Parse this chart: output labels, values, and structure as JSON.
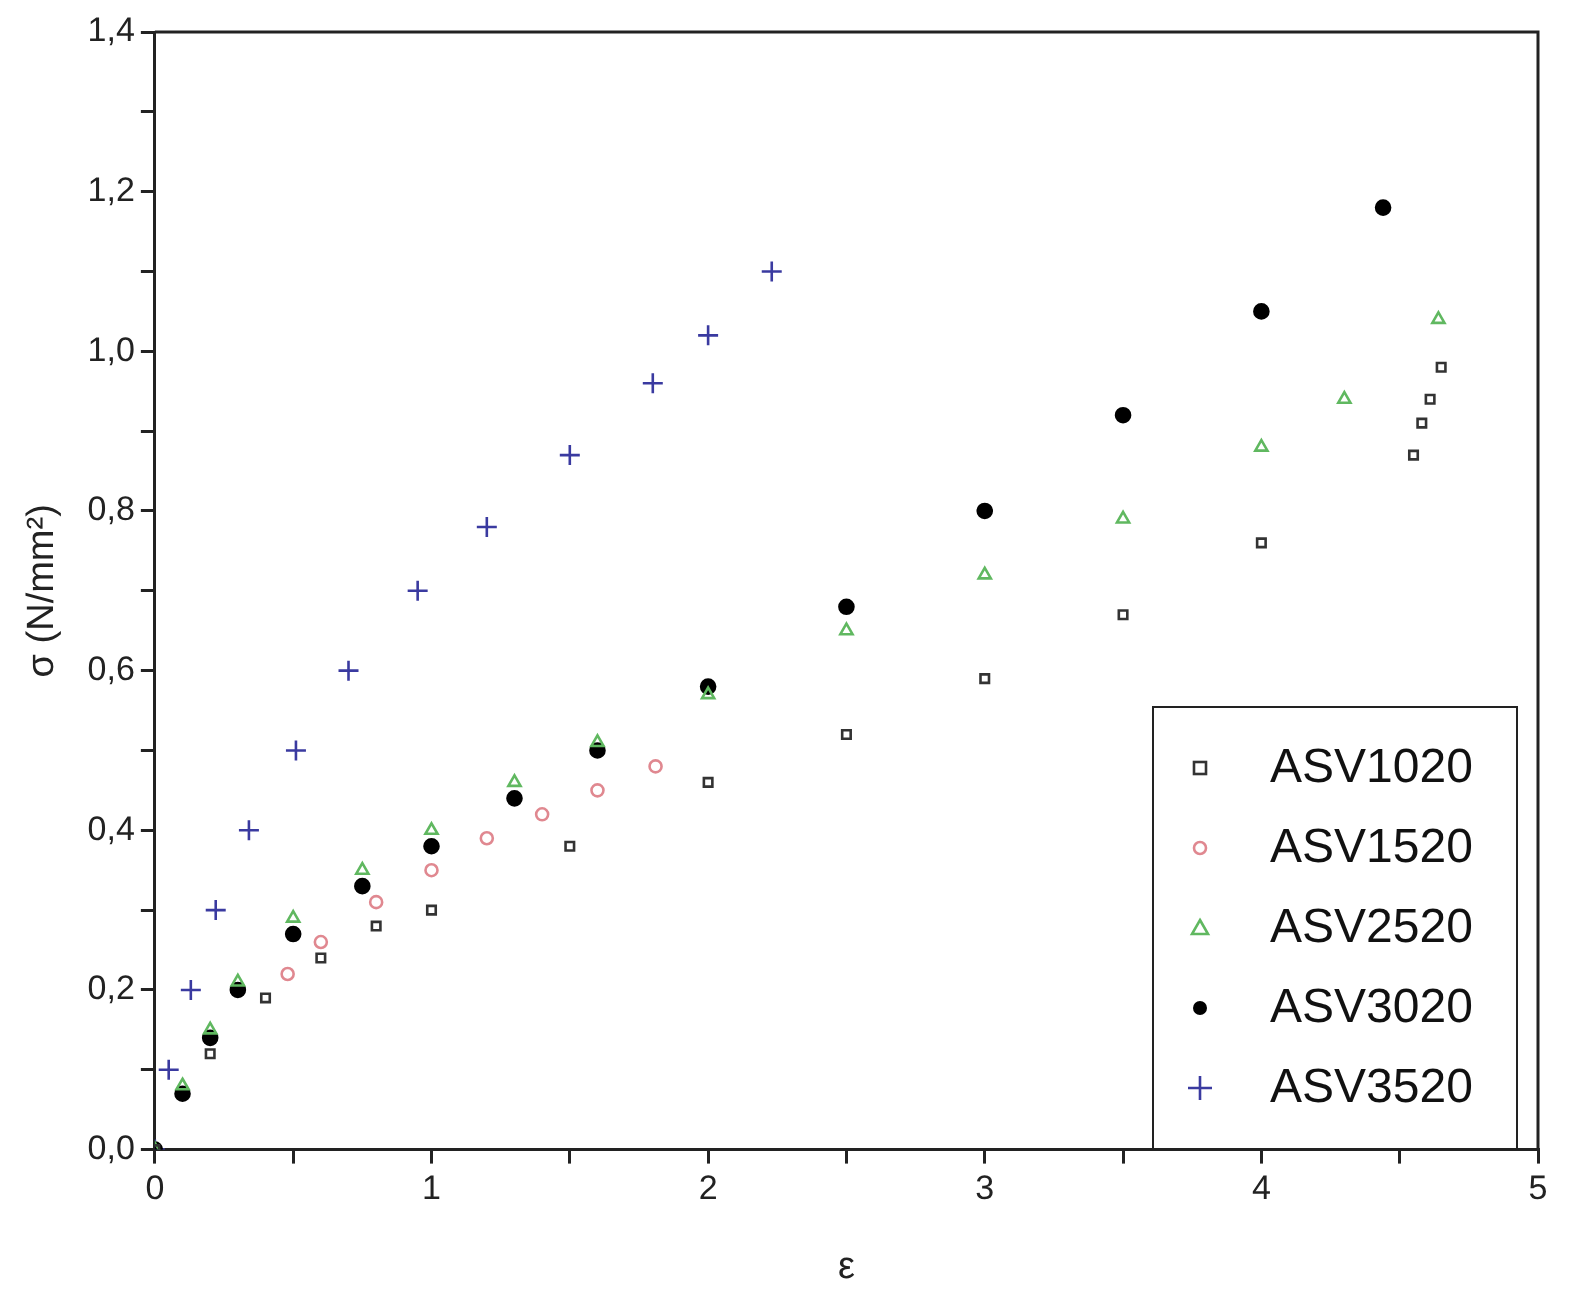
{
  "chart_data": {
    "type": "scatter",
    "xlabel": "ε",
    "ylabel": "σ (N/mm²)",
    "xlim": [
      0,
      5
    ],
    "ylim": [
      0,
      1.4
    ],
    "xticks": [
      0,
      {
        "value": 0.5,
        "label": null
      },
      1,
      {
        "value": 1.5,
        "label": null
      },
      2,
      {
        "value": 2.5,
        "label": null
      },
      3,
      {
        "value": 3.5,
        "label": null
      },
      4,
      {
        "value": 4.5,
        "label": null
      },
      5
    ],
    "yticks": [
      {
        "value": 0,
        "label": "0,0"
      },
      {
        "value": 0.1,
        "label": null
      },
      {
        "value": 0.2,
        "label": "0,2"
      },
      {
        "value": 0.3,
        "label": null
      },
      {
        "value": 0.4,
        "label": "0,4"
      },
      {
        "value": 0.5,
        "label": null
      },
      {
        "value": 0.6,
        "label": "0,6"
      },
      {
        "value": 0.7,
        "label": null
      },
      {
        "value": 0.8,
        "label": "0,8"
      },
      {
        "value": 0.9,
        "label": null
      },
      {
        "value": 1.0,
        "label": "1,0"
      },
      {
        "value": 1.1,
        "label": null
      },
      {
        "value": 1.2,
        "label": "1,2"
      },
      {
        "value": 1.3,
        "label": null
      },
      {
        "value": 1.4,
        "label": "1,4"
      }
    ],
    "grid": false,
    "legend": "bottom right",
    "series": [
      {
        "name": "ASV1020",
        "color": "#333333",
        "marker": "square",
        "x": [
          0,
          0.2,
          0.4,
          0.6,
          0.8,
          1.0,
          1.5,
          2.0,
          2.5,
          3.0,
          3.5,
          4.0,
          4.55,
          4.58,
          4.61,
          4.65
        ],
        "values": [
          0,
          0.12,
          0.19,
          0.24,
          0.28,
          0.3,
          0.38,
          0.46,
          0.52,
          0.59,
          0.67,
          0.76,
          0.87,
          0.91,
          0.94,
          0.98
        ]
      },
      {
        "name": "ASV1520",
        "color": "#e08890",
        "marker": "circle",
        "x": [
          0.48,
          0.6,
          0.8,
          1.0,
          1.2,
          1.4,
          1.6,
          1.81
        ],
        "values": [
          0.22,
          0.26,
          0.31,
          0.35,
          0.39,
          0.42,
          0.45,
          0.48
        ]
      },
      {
        "name": "ASV2520",
        "color": "#60b860",
        "marker": "triangle",
        "x": [
          0,
          0.1,
          0.2,
          0.3,
          0.5,
          0.75,
          1.0,
          1.3,
          1.6,
          2.0,
          2.5,
          3.0,
          3.5,
          4.0,
          4.3,
          4.64
        ],
        "values": [
          0,
          0.08,
          0.15,
          0.21,
          0.29,
          0.35,
          0.4,
          0.46,
          0.51,
          0.57,
          0.65,
          0.72,
          0.79,
          0.88,
          0.94,
          1.04
        ]
      },
      {
        "name": "ASV3020",
        "color": "#000000",
        "marker": "dot",
        "x": [
          0,
          0.1,
          0.2,
          0.3,
          0.5,
          0.75,
          1.0,
          1.3,
          1.6,
          2.0,
          2.5,
          3.0,
          3.5,
          4.0,
          4.44
        ],
        "values": [
          0,
          0.07,
          0.14,
          0.2,
          0.27,
          0.33,
          0.38,
          0.44,
          0.5,
          0.58,
          0.68,
          0.8,
          0.92,
          1.05,
          1.18
        ]
      },
      {
        "name": "ASV3520",
        "color": "#3a3aa0",
        "marker": "cross",
        "x": [
          0,
          0.05,
          0.13,
          0.22,
          0.34,
          0.51,
          0.7,
          0.95,
          1.2,
          1.5,
          1.8,
          2.0,
          2.23
        ],
        "values": [
          0,
          0.1,
          0.2,
          0.3,
          0.4,
          0.5,
          0.6,
          0.7,
          0.78,
          0.87,
          0.96,
          1.02,
          1.1
        ]
      }
    ]
  }
}
